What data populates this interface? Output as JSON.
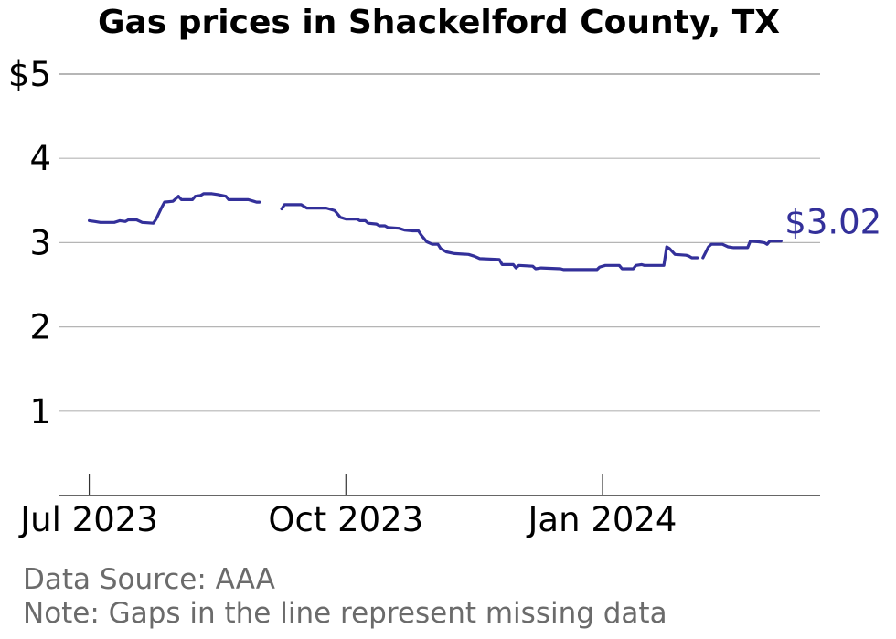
{
  "chart_data": {
    "type": "line",
    "title": "Gas prices in Shackelford County, TX",
    "ylim": [
      0,
      5
    ],
    "y_ticks": [
      {
        "value": 1,
        "label": "1"
      },
      {
        "value": 2,
        "label": "2"
      },
      {
        "value": 3,
        "label": "3"
      },
      {
        "value": 4,
        "label": "4"
      },
      {
        "value": 5,
        "label": "$5"
      }
    ],
    "x_range": [
      "2023-06-20",
      "2024-03-19"
    ],
    "x_ticks": [
      {
        "date": "2023-07-01",
        "label": "Jul 2023"
      },
      {
        "date": "2023-10-01",
        "label": "Oct 2023"
      },
      {
        "date": "2024-01-01",
        "label": "Jan 2024"
      }
    ],
    "grid": true,
    "line_color": "#33309a",
    "end_label": "$3.02",
    "series": [
      {
        "segments": [
          [
            [
              "2023-07-01",
              3.26
            ],
            [
              "2023-07-03",
              3.25
            ],
            [
              "2023-07-05",
              3.24
            ],
            [
              "2023-07-10",
              3.24
            ],
            [
              "2023-07-12",
              3.26
            ],
            [
              "2023-07-14",
              3.25
            ],
            [
              "2023-07-15",
              3.27
            ],
            [
              "2023-07-18",
              3.27
            ],
            [
              "2023-07-20",
              3.24
            ],
            [
              "2023-07-24",
              3.23
            ],
            [
              "2023-07-25",
              3.28
            ],
            [
              "2023-07-27",
              3.42
            ],
            [
              "2023-07-28",
              3.48
            ],
            [
              "2023-07-31",
              3.49
            ],
            [
              "2023-08-01",
              3.52
            ],
            [
              "2023-08-02",
              3.55
            ],
            [
              "2023-08-03",
              3.51
            ],
            [
              "2023-08-07",
              3.51
            ],
            [
              "2023-08-08",
              3.55
            ],
            [
              "2023-08-10",
              3.56
            ],
            [
              "2023-08-11",
              3.58
            ],
            [
              "2023-08-14",
              3.58
            ],
            [
              "2023-08-16",
              3.57
            ],
            [
              "2023-08-19",
              3.55
            ],
            [
              "2023-08-20",
              3.51
            ],
            [
              "2023-08-27",
              3.51
            ],
            [
              "2023-08-29",
              3.49
            ],
            [
              "2023-08-30",
              3.48
            ],
            [
              "2023-08-31",
              3.48
            ]
          ],
          [
            [
              "2023-09-08",
              3.4
            ],
            [
              "2023-09-09",
              3.45
            ],
            [
              "2023-09-15",
              3.45
            ],
            [
              "2023-09-16",
              3.43
            ],
            [
              "2023-09-17",
              3.41
            ],
            [
              "2023-09-24",
              3.41
            ],
            [
              "2023-09-25",
              3.4
            ],
            [
              "2023-09-27",
              3.38
            ],
            [
              "2023-09-29",
              3.3
            ],
            [
              "2023-10-01",
              3.28
            ],
            [
              "2023-10-05",
              3.28
            ],
            [
              "2023-10-06",
              3.26
            ],
            [
              "2023-10-08",
              3.26
            ],
            [
              "2023-10-09",
              3.23
            ],
            [
              "2023-10-12",
              3.22
            ],
            [
              "2023-10-13",
              3.2
            ],
            [
              "2023-10-15",
              3.2
            ],
            [
              "2023-10-16",
              3.18
            ],
            [
              "2023-10-20",
              3.17
            ],
            [
              "2023-10-22",
              3.15
            ],
            [
              "2023-10-25",
              3.14
            ],
            [
              "2023-10-27",
              3.14
            ],
            [
              "2023-10-28",
              3.09
            ],
            [
              "2023-10-30",
              3.01
            ],
            [
              "2023-11-01",
              2.98
            ],
            [
              "2023-11-03",
              2.98
            ],
            [
              "2023-11-04",
              2.93
            ],
            [
              "2023-11-06",
              2.89
            ],
            [
              "2023-11-09",
              2.87
            ],
            [
              "2023-11-14",
              2.86
            ],
            [
              "2023-11-16",
              2.84
            ],
            [
              "2023-11-18",
              2.81
            ],
            [
              "2023-11-25",
              2.8
            ],
            [
              "2023-11-26",
              2.74
            ],
            [
              "2023-11-30",
              2.74
            ],
            [
              "2023-12-01",
              2.7
            ],
            [
              "2023-12-02",
              2.73
            ],
            [
              "2023-12-07",
              2.72
            ],
            [
              "2023-12-08",
              2.69
            ],
            [
              "2023-12-10",
              2.7
            ],
            [
              "2023-12-17",
              2.69
            ],
            [
              "2023-12-18",
              2.68
            ],
            [
              "2023-12-30",
              2.68
            ],
            [
              "2023-12-31",
              2.71
            ],
            [
              "2024-01-02",
              2.73
            ],
            [
              "2024-01-07",
              2.73
            ],
            [
              "2024-01-08",
              2.69
            ],
            [
              "2024-01-12",
              2.69
            ],
            [
              "2024-01-13",
              2.73
            ],
            [
              "2024-01-15",
              2.74
            ],
            [
              "2024-01-16",
              2.73
            ],
            [
              "2024-01-23",
              2.73
            ],
            [
              "2024-01-24",
              2.95
            ],
            [
              "2024-01-25",
              2.93
            ],
            [
              "2024-01-27",
              2.86
            ],
            [
              "2024-01-31",
              2.85
            ],
            [
              "2024-02-01",
              2.84
            ],
            [
              "2024-02-02",
              2.82
            ],
            [
              "2024-02-04",
              2.82
            ]
          ],
          [
            [
              "2024-02-06",
              2.82
            ],
            [
              "2024-02-08",
              2.95
            ],
            [
              "2024-02-09",
              2.98
            ],
            [
              "2024-02-13",
              2.98
            ],
            [
              "2024-02-15",
              2.95
            ],
            [
              "2024-02-17",
              2.94
            ],
            [
              "2024-02-22",
              2.94
            ],
            [
              "2024-02-23",
              3.02
            ],
            [
              "2024-02-26",
              3.01
            ],
            [
              "2024-02-28",
              3.0
            ],
            [
              "2024-02-29",
              2.98
            ],
            [
              "2024-03-01",
              3.02
            ],
            [
              "2024-03-05",
              3.02
            ]
          ]
        ]
      }
    ]
  },
  "footer": {
    "source": "Data Source: AAA",
    "note": "Note: Gaps in the line represent missing data"
  }
}
